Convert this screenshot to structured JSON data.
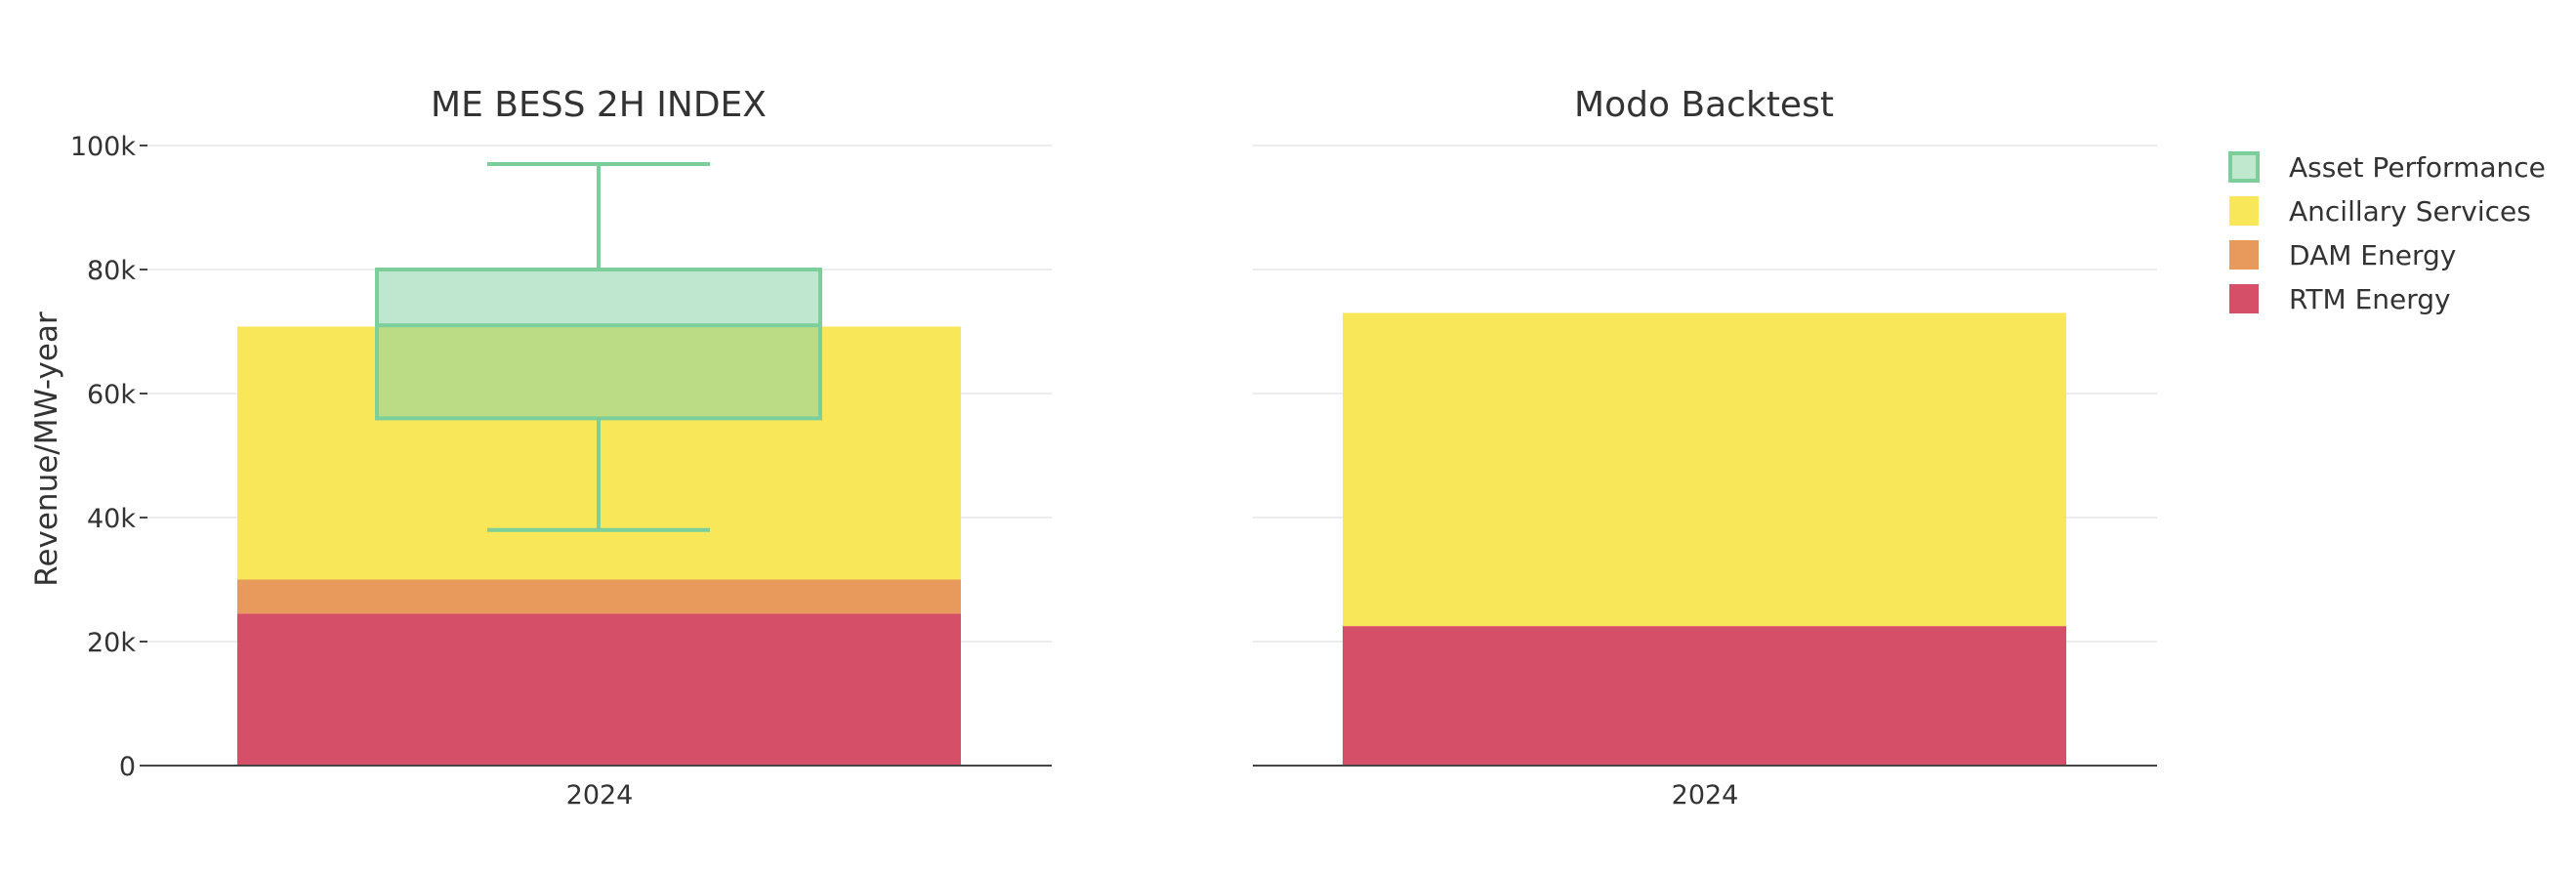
{
  "chart_data": [
    {
      "type": "bar",
      "stacked": true,
      "title": "ME BESS 2H INDEX",
      "ylabel": "Revenue/MW-year",
      "categories": [
        "2024"
      ],
      "ylim": [
        0,
        100000
      ],
      "yticks": [
        0,
        20000,
        40000,
        60000,
        80000,
        100000
      ],
      "ytick_labels": [
        "0",
        "20k",
        "40k",
        "60k",
        "80k",
        "100k"
      ],
      "grid": true,
      "series": [
        {
          "name": "RTM Energy",
          "color": "#d64f68",
          "values": [
            24500
          ]
        },
        {
          "name": "DAM Energy",
          "color": "#e89a5c",
          "values": [
            5500
          ]
        },
        {
          "name": "Ancillary Services",
          "color": "#f7e759",
          "values": [
            40800
          ]
        }
      ],
      "boxplot": {
        "name": "Asset Performance",
        "stroke": "#7ccf9a",
        "fill": "rgba(138, 212, 168, 0.55)",
        "min": 38000,
        "q1": 56000,
        "median": 71000,
        "q3": 80000,
        "max": 97000
      }
    },
    {
      "type": "bar",
      "stacked": true,
      "title": "Modo Backtest",
      "categories": [
        "2024"
      ],
      "ylim": [
        0,
        100000
      ],
      "grid": true,
      "series": [
        {
          "name": "RTM Energy",
          "color": "#d64f68",
          "values": [
            22500
          ]
        },
        {
          "name": "Ancillary Services",
          "color": "#f7e759",
          "values": [
            50500
          ]
        }
      ]
    }
  ],
  "legend": {
    "position": "top-right",
    "items": [
      {
        "label": "Asset Performance",
        "color": "#bfe8cf",
        "stroke": "#7ccf9a"
      },
      {
        "label": "Ancillary Services",
        "color": "#f7e759"
      },
      {
        "label": "DAM Energy",
        "color": "#e89a5c"
      },
      {
        "label": "RTM Energy",
        "color": "#d64f68"
      }
    ]
  }
}
